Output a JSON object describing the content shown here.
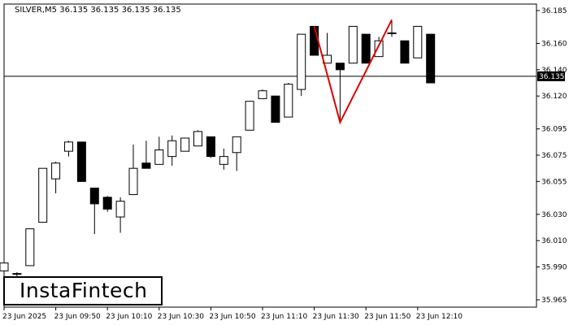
{
  "chart_data": {
    "type": "candlestick",
    "header": "SILVER,M5  36.135 36.135 36.135 36.135",
    "current_price": 36.135,
    "current_price_label": "36.135",
    "ylim": [
      35.96,
      36.19
    ],
    "y_ticks": [
      {
        "v": 36.185,
        "label": "36.185"
      },
      {
        "v": 36.16,
        "label": "36.160"
      },
      {
        "v": 36.14,
        "label": "36.140"
      },
      {
        "v": 36.12,
        "label": "36.120"
      },
      {
        "v": 36.095,
        "label": "36.095"
      },
      {
        "v": 36.075,
        "label": "36.075"
      },
      {
        "v": 36.055,
        "label": "36.055"
      },
      {
        "v": 36.03,
        "label": "36.030"
      },
      {
        "v": 36.01,
        "label": "36.010"
      },
      {
        "v": 35.99,
        "label": "35.990"
      },
      {
        "v": 35.965,
        "label": "35.965"
      }
    ],
    "x_labels": [
      {
        "i": 0,
        "label": "23 Jun 2025"
      },
      {
        "i": 4,
        "label": "23 Jun 09:50"
      },
      {
        "i": 8,
        "label": "23 Jun 10:10"
      },
      {
        "i": 12,
        "label": "23 Jun 10:30"
      },
      {
        "i": 16,
        "label": "23 Jun 10:50"
      },
      {
        "i": 20,
        "label": "23 Jun 11:10"
      },
      {
        "i": 24,
        "label": "23 Jun 11:30"
      },
      {
        "i": 28,
        "label": "23 Jun 11:50"
      },
      {
        "i": 32,
        "label": "23 Jun 12:10"
      }
    ],
    "candles": [
      {
        "o": 35.987,
        "h": 35.998,
        "l": 35.978,
        "c": 35.993
      },
      {
        "o": 35.985,
        "h": 35.986,
        "l": 35.978,
        "c": 35.985
      },
      {
        "o": 35.991,
        "h": 36.019,
        "l": 35.991,
        "c": 36.019
      },
      {
        "o": 36.024,
        "h": 36.065,
        "l": 36.024,
        "c": 36.065
      },
      {
        "o": 36.057,
        "h": 36.07,
        "l": 36.046,
        "c": 36.069
      },
      {
        "o": 36.078,
        "h": 36.086,
        "l": 36.074,
        "c": 36.085
      },
      {
        "o": 36.085,
        "h": 36.085,
        "l": 36.055,
        "c": 36.055
      },
      {
        "o": 36.05,
        "h": 36.05,
        "l": 36.015,
        "c": 36.038
      },
      {
        "o": 36.043,
        "h": 36.044,
        "l": 36.032,
        "c": 36.034
      },
      {
        "o": 36.028,
        "h": 36.043,
        "l": 36.016,
        "c": 36.04
      },
      {
        "o": 36.045,
        "h": 36.083,
        "l": 36.045,
        "c": 36.065
      },
      {
        "o": 36.069,
        "h": 36.086,
        "l": 36.065,
        "c": 36.065
      },
      {
        "o": 36.068,
        "h": 36.089,
        "l": 36.068,
        "c": 36.079
      },
      {
        "o": 36.074,
        "h": 36.09,
        "l": 36.067,
        "c": 36.086
      },
      {
        "o": 36.078,
        "h": 36.088,
        "l": 36.078,
        "c": 36.088
      },
      {
        "o": 36.082,
        "h": 36.094,
        "l": 36.082,
        "c": 36.093
      },
      {
        "o": 36.089,
        "h": 36.089,
        "l": 36.073,
        "c": 36.074
      },
      {
        "o": 36.068,
        "h": 36.08,
        "l": 36.064,
        "c": 36.074
      },
      {
        "o": 36.077,
        "h": 36.089,
        "l": 36.063,
        "c": 36.089
      },
      {
        "o": 36.094,
        "h": 36.116,
        "l": 36.094,
        "c": 36.116
      },
      {
        "o": 36.118,
        "h": 36.125,
        "l": 36.118,
        "c": 36.124
      },
      {
        "o": 36.12,
        "h": 36.12,
        "l": 36.1,
        "c": 36.1
      },
      {
        "o": 36.104,
        "h": 36.13,
        "l": 36.104,
        "c": 36.129
      },
      {
        "o": 36.125,
        "h": 36.167,
        "l": 36.12,
        "c": 36.167
      },
      {
        "o": 36.173,
        "h": 36.173,
        "l": 36.151,
        "c": 36.151
      },
      {
        "o": 36.145,
        "h": 36.168,
        "l": 36.145,
        "c": 36.151
      },
      {
        "o": 36.145,
        "h": 36.145,
        "l": 36.1,
        "c": 36.14
      },
      {
        "o": 36.145,
        "h": 36.173,
        "l": 36.145,
        "c": 36.173
      },
      {
        "o": 36.167,
        "h": 36.167,
        "l": 36.145,
        "c": 36.145
      },
      {
        "o": 36.15,
        "h": 36.165,
        "l": 36.15,
        "c": 36.162
      },
      {
        "o": 36.168,
        "h": 36.178,
        "l": 36.165,
        "c": 36.168
      },
      {
        "o": 36.162,
        "h": 36.162,
        "l": 36.145,
        "c": 36.145
      },
      {
        "o": 36.149,
        "h": 36.173,
        "l": 36.149,
        "c": 36.173
      },
      {
        "o": 36.167,
        "h": 36.167,
        "l": 36.13,
        "c": 36.13
      }
    ],
    "pattern": {
      "name": "",
      "color": "#e00000",
      "points": [
        {
          "i": 24,
          "v": 36.173
        },
        {
          "i": 26,
          "v": 36.1
        },
        {
          "i": 30,
          "v": 36.178
        }
      ]
    },
    "colors": {
      "bull_fill": "#ffffff",
      "bear_fill": "#000000",
      "outline": "#000000"
    }
  },
  "logo": {
    "text": "InstaFintech"
  }
}
